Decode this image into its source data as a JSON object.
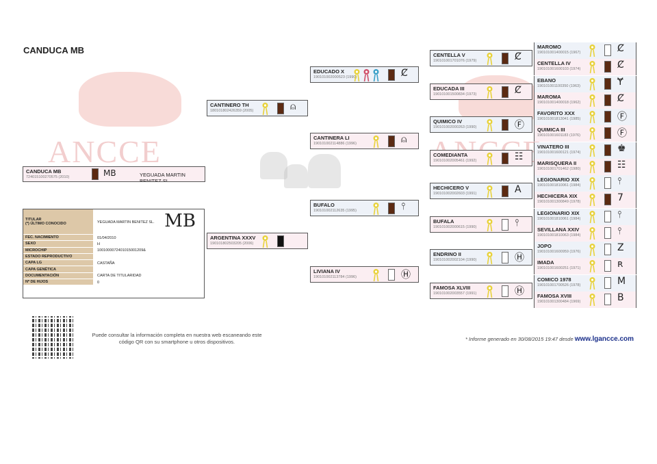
{
  "title": "CANDUCA MB",
  "watermark": "ANCCE",
  "colors": {
    "male_bg": "#eef2f8",
    "female_bg": "#fbeef2",
    "label_bg": "#ddc8a8",
    "link": "#1a2f8a"
  },
  "subject": {
    "name": "CANDUCA MB",
    "id": "724015100270575 (2010)",
    "coat": "brown",
    "brand": "MB",
    "owner": "YEGUADA MARTIN BENITEZ SL."
  },
  "info": {
    "brand": "MB",
    "rows": [
      {
        "k": "TITULAR\n(*) ÚLTIMO CONOCIDO",
        "v": "YEGUADA MARTIN BENITEZ SL."
      },
      {
        "k": "FEC. NACIMIENTO",
        "v": "01/04/2010"
      },
      {
        "k": "SEXO",
        "v": "H"
      },
      {
        "k": "MICROCHIP",
        "v": "1001000072401015001209&"
      },
      {
        "k": "ESTADO REPRODUCTIVO",
        "v": ""
      },
      {
        "k": "CAPA LG",
        "v": "CASTAÑA"
      },
      {
        "k": "CAPA GENÉTICA",
        "v": ""
      },
      {
        "k": "DOCUMENTACIÓN",
        "v": "CARTA DE TITULARIDAD"
      },
      {
        "k": "Nº DE HIJOS",
        "v": "0"
      }
    ]
  },
  "gen1": [
    {
      "name": "CANTINERO TH",
      "id": "180101802426359 (2005)",
      "sex": "m",
      "coat": "brown",
      "rosettes": [
        "yellow"
      ],
      "brand": "bell-icon"
    },
    {
      "name": "ARGENTINA XXXV",
      "id": "190101802503205 (2006)",
      "sex": "f",
      "coat": "black",
      "rosettes": [
        "yellow"
      ],
      "brand": ""
    }
  ],
  "gen2": [
    {
      "name": "EDUCADO X",
      "id": "190101002000523 (1990)",
      "sex": "m",
      "coat": "brown",
      "rosettes": [
        "yellow",
        "red",
        "blue"
      ],
      "brand": "cs-icon"
    },
    {
      "name": "CANTINERA LI",
      "id": "190101002114886 (1996)",
      "sex": "f",
      "coat": "brown",
      "rosettes": [
        "yellow"
      ],
      "brand": "bell-icon"
    },
    {
      "name": "BUFALO",
      "id": "190101002112635 (1995)",
      "sex": "m",
      "coat": "brown",
      "rosettes": [
        "yellow"
      ],
      "brand": "anchor-icon"
    },
    {
      "name": "LIVIANA IV",
      "id": "190101002113784 (1996)",
      "sex": "f",
      "coat": "white",
      "rosettes": [
        "yellow"
      ],
      "brand": "jh-circle-icon"
    }
  ],
  "gen3": [
    {
      "name": "CENTELLA V",
      "id": "190101001701076 (1979)",
      "sex": "m",
      "coat": "brown",
      "rosettes": [
        "yellow"
      ],
      "brand": "cs-icon"
    },
    {
      "name": "EDUCADA III",
      "id": "190101001500834 (1973)",
      "sex": "f",
      "coat": "brown",
      "rosettes": [
        "yellow"
      ],
      "brand": "cs-icon"
    },
    {
      "name": "QUIMICO IV",
      "id": "190101002000263 (1990)",
      "sex": "m",
      "coat": "brown",
      "rosettes": [
        "yellow"
      ],
      "brand": "jf-circle-icon"
    },
    {
      "name": "COMEDIANTA",
      "id": "190101002005461 (1992)",
      "sex": "f",
      "coat": "brown",
      "rosettes": [
        "yellow"
      ],
      "brand": "ladder-icon"
    },
    {
      "name": "HECHICERO V",
      "id": "190101002002603 (1991)",
      "sex": "m",
      "coat": "brown",
      "rosettes": [
        "yellow"
      ],
      "brand": "a-icon"
    },
    {
      "name": "BUFALA",
      "id": "190101002000615 (1990)",
      "sex": "f",
      "coat": "white",
      "rosettes": [
        "yellow"
      ],
      "brand": "anchor-icon"
    },
    {
      "name": "ENDRINO II",
      "id": "190101002002104 (1990)",
      "sex": "m",
      "coat": "white",
      "rosettes": [
        "yellow"
      ],
      "brand": "jh-circle-icon"
    },
    {
      "name": "FAMOSA XLVIII",
      "id": "190101002003557 (1991)",
      "sex": "f",
      "coat": "white",
      "rosettes": [
        "yellow"
      ],
      "brand": "jh-circle-icon"
    }
  ],
  "gen4": [
    {
      "name": "MAROMO",
      "id": "190101001400015 (1967)",
      "sex": "m",
      "coat": "white",
      "rosettes": [
        "yellow"
      ],
      "brand": "cs-icon"
    },
    {
      "name": "CENTELLA IV",
      "id": "190101001600103 (1974)",
      "sex": "f",
      "coat": "brown",
      "rosettes": [
        "yellow"
      ],
      "brand": "cs-icon"
    },
    {
      "name": "EBANO",
      "id": "190101001100350 (1963)",
      "sex": "m",
      "coat": "brown",
      "rosettes": [
        "yellow"
      ],
      "brand": "ym-icon"
    },
    {
      "name": "MAROMA",
      "id": "190101001400018 (1962)",
      "sex": "f",
      "coat": "brown",
      "rosettes": [
        "yellow"
      ],
      "brand": "cs-icon"
    },
    {
      "name": "FAVORITO XXX",
      "id": "190101001813041 (1985)",
      "sex": "m",
      "coat": "brown",
      "rosettes": [
        "yellow"
      ],
      "brand": "jf-circle-icon"
    },
    {
      "name": "QUIMICA III",
      "id": "190101001601183 (1976)",
      "sex": "f",
      "coat": "brown",
      "rosettes": [
        "yellow"
      ],
      "brand": "jf-circle-icon"
    },
    {
      "name": "VINATERO III",
      "id": "190101001600121 (1974)",
      "sex": "m",
      "coat": "brown",
      "rosettes": [
        "yellow"
      ],
      "brand": "crown-icon"
    },
    {
      "name": "MARISQUERA II",
      "id": "190101001701462 (1980)",
      "sex": "f",
      "coat": "brown",
      "rosettes": [
        "yellow"
      ],
      "brand": "ladder-icon"
    },
    {
      "name": "LEGIONARIO XIX",
      "id": "190101001810061 (1984)",
      "sex": "m",
      "coat": "white",
      "rosettes": [
        "yellow"
      ],
      "brand": "anchor-icon"
    },
    {
      "name": "HECHICERA XIX",
      "id": "190101001300849 (1978)",
      "sex": "f",
      "coat": "brown",
      "rosettes": [
        "yellow"
      ],
      "brand": "seven-icon"
    },
    {
      "name": "LEGIONARIO XIX",
      "id": "190101001810061 (1984)",
      "sex": "m",
      "coat": "white",
      "rosettes": [
        "yellow"
      ],
      "brand": "anchor-icon"
    },
    {
      "name": "SEVILLANA XXIV",
      "id": "190101001810063 (1984)",
      "sex": "f",
      "coat": "white",
      "rosettes": [
        "yellow"
      ],
      "brand": "anchor-icon"
    },
    {
      "name": "JOPO",
      "id": "190101001600959 (1976)",
      "sex": "m",
      "coat": "white",
      "rosettes": [
        "yellow"
      ],
      "brand": "z-icon"
    },
    {
      "name": "IMADA",
      "id": "190101001600251 (1971)",
      "sex": "f",
      "coat": "white",
      "rosettes": [
        "yellow"
      ],
      "brand": "rm-icon"
    },
    {
      "name": "COMICO 1978",
      "id": "190101001700526 (1978)",
      "sex": "m",
      "coat": "white",
      "rosettes": [
        "yellow"
      ],
      "brand": "m-icon"
    },
    {
      "name": "FAMOSA XVIII",
      "id": "190101001300484 (1969)",
      "sex": "f",
      "coat": "white",
      "rosettes": [
        "yellow"
      ],
      "brand": "b-icon"
    }
  ],
  "qr_text": "Puede consultar la información completa en nuestra web escaneando este código QR con su smartphone u otros dispositivos.",
  "footer": {
    "text": "* Informe generado en 30/08/2015 19:47 desde",
    "link": "www.lgancce.com"
  }
}
